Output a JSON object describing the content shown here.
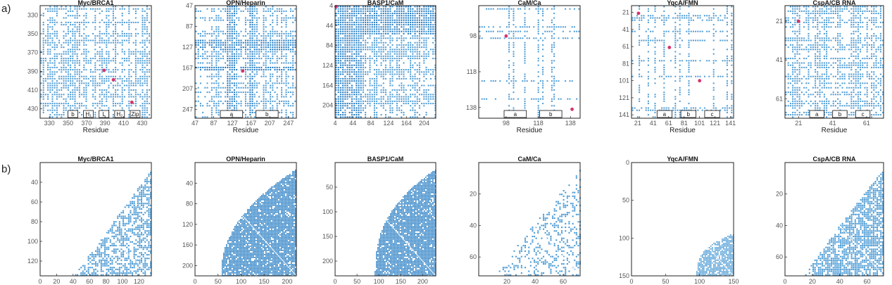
{
  "figure": {
    "row_labels": [
      "a)",
      "b)"
    ],
    "colors": {
      "dot": "#4c9bd4",
      "dense": "#1f78c1",
      "marker": "#d6336c",
      "axis": "#222222",
      "tick": "#555555"
    }
  },
  "chart_data": [
    {
      "type": "heatmap",
      "title": "Myc/BRCA1",
      "xlabel": "Residue",
      "ylabel": "",
      "ticks": [
        330,
        350,
        370,
        390,
        410,
        430
      ],
      "x_tick_labels": [
        "330",
        "350",
        "370",
        "390",
        "410",
        "430"
      ],
      "y_tick_labels": [
        "330",
        "350",
        "370",
        "390",
        "410",
        "430"
      ],
      "range": [
        320,
        440
      ],
      "density": 0.55,
      "dense_bands": [],
      "highlight_points": [
        [
          389,
          389
        ],
        [
          399,
          399
        ],
        [
          419,
          423
        ]
      ],
      "region_labels": [
        "b",
        "H₁",
        "L",
        "H₂",
        "Zip"
      ]
    },
    {
      "type": "heatmap",
      "title": "OPN/Heparin",
      "xlabel": "Residue",
      "ylabel": "",
      "ticks": [
        47,
        87,
        127,
        167,
        207,
        247
      ],
      "x_tick_labels": [
        "47",
        "87",
        "127",
        "167",
        "207",
        "247"
      ],
      "y_tick_labels": [
        "47",
        "87",
        "127",
        "167",
        "207",
        "247"
      ],
      "range": [
        47,
        264
      ],
      "density": 0.55,
      "dense_bands": [
        [
          112,
          130
        ],
        [
          160,
          172
        ]
      ],
      "highlight_points": [
        [
          149,
          173
        ]
      ],
      "region_labels": [
        "a",
        "b"
      ]
    },
    {
      "type": "heatmap",
      "title": "BASP1/CaM",
      "xlabel": "",
      "ylabel": "",
      "ticks": [
        4,
        44,
        84,
        124,
        164,
        204
      ],
      "x_tick_labels": [
        "4",
        "44",
        "84",
        "124",
        "164",
        "204"
      ],
      "y_tick_labels": [
        "4",
        "44",
        "84",
        "124",
        "164",
        "204"
      ],
      "range": [
        4,
        230
      ],
      "density": 0.6,
      "dense_bands": [
        [
          4,
          60
        ]
      ],
      "highlight_points": [
        [
          6,
          6
        ]
      ],
      "region_labels": []
    },
    {
      "type": "heatmap",
      "title": "CaM/Ca",
      "xlabel": "Residue",
      "ylabel": "",
      "ticks": [
        98,
        118,
        138
      ],
      "x_tick_labels": [
        "98",
        "118",
        "138"
      ],
      "y_tick_labels": [
        "98",
        "118",
        "138"
      ],
      "range": [
        81,
        144
      ],
      "density": 0.12,
      "dense_bands": [],
      "highlight_points": [
        [
          98,
          98
        ],
        [
          139,
          139
        ]
      ],
      "region_labels": [
        "a",
        "b"
      ]
    },
    {
      "type": "heatmap",
      "title": "YqcA/FMN",
      "xlabel": "Residue",
      "ylabel": "",
      "ticks": [
        21,
        41,
        61,
        81,
        101,
        121,
        141
      ],
      "x_tick_labels": [
        "21",
        "41",
        "61",
        "81",
        "101",
        "121",
        "141"
      ],
      "y_tick_labels": [
        "21",
        "41",
        "61",
        "81",
        "101",
        "121",
        "141"
      ],
      "range": [
        13,
        145
      ],
      "density": 0.2,
      "dense_bands": [],
      "highlight_points": [
        [
          22,
          22
        ],
        [
          62,
          62
        ],
        [
          101,
          101
        ]
      ],
      "region_labels": [
        "a",
        "b",
        "c"
      ]
    },
    {
      "type": "heatmap",
      "title": "CspA/CB RNA",
      "xlabel": "Residue",
      "ylabel": "",
      "ticks": [
        21,
        41,
        61
      ],
      "x_tick_labels": [
        "21",
        "41",
        "61"
      ],
      "y_tick_labels": [
        "21",
        "41",
        "61"
      ],
      "range": [
        13,
        71
      ],
      "density": 0.45,
      "dense_bands": [],
      "highlight_points": [
        [
          21,
          21
        ]
      ],
      "region_labels": [
        "a",
        "b",
        "c"
      ]
    },
    {
      "type": "heatmap",
      "title": "Myc/BRCA1",
      "xlabel": "",
      "ylabel": "",
      "x_ticks": [
        0,
        20,
        40,
        60,
        80,
        100,
        120
      ],
      "x_tick_labels": [
        "0",
        "20",
        "40",
        "60",
        "80",
        "100",
        "120"
      ],
      "y_ticks": [
        40,
        60,
        80,
        100,
        120
      ],
      "y_tick_labels": [
        "40",
        "60",
        "80",
        "100",
        "120"
      ],
      "xlim": [
        0,
        135
      ],
      "ylim": [
        20,
        135
      ],
      "fill": "sparse",
      "start": 40,
      "end": 135,
      "steep": 1.0
    },
    {
      "type": "heatmap",
      "title": "OPN/Heparin",
      "xlabel": "",
      "ylabel": "",
      "x_ticks": [
        0,
        50,
        100,
        150,
        200
      ],
      "x_tick_labels": [
        "0",
        "50",
        "100",
        "150",
        "200"
      ],
      "y_ticks": [
        40,
        80,
        120,
        160,
        200
      ],
      "y_tick_labels": [
        "40",
        "80",
        "120",
        "160",
        "200"
      ],
      "xlim": [
        0,
        220
      ],
      "ylim": [
        0,
        220
      ],
      "fill": "dense",
      "start": 55,
      "end": 220,
      "steep": 2.2
    },
    {
      "type": "heatmap",
      "title": "BASP1/CaM",
      "xlabel": "",
      "ylabel": "",
      "x_ticks": [
        0,
        50,
        100,
        150,
        200
      ],
      "x_tick_labels": [
        "0",
        "50",
        "100",
        "150",
        "200"
      ],
      "y_ticks": [
        50,
        100,
        150,
        200
      ],
      "y_tick_labels": [
        "50",
        "100",
        "150",
        "200"
      ],
      "xlim": [
        0,
        230
      ],
      "ylim": [
        0,
        230
      ],
      "fill": "dense",
      "start": 90,
      "end": 230,
      "steep": 2.6
    },
    {
      "type": "heatmap",
      "title": "CaM/Ca",
      "xlabel": "",
      "ylabel": "",
      "x_ticks": [
        20,
        40,
        60
      ],
      "x_tick_labels": [
        "20",
        "40",
        "60"
      ],
      "y_ticks": [
        20,
        40,
        60
      ],
      "y_tick_labels": [
        "20",
        "40",
        "60"
      ],
      "xlim": [
        0,
        72
      ],
      "ylim": [
        0,
        72
      ],
      "fill": "very-sparse",
      "start": 12,
      "end": 72,
      "steep": 1.1
    },
    {
      "type": "heatmap",
      "title": "YqcA/FMN",
      "xlabel": "",
      "ylabel": "",
      "x_ticks": [
        0,
        50,
        100,
        150
      ],
      "x_tick_labels": [
        "0",
        "50",
        "100",
        "150"
      ],
      "y_ticks": [
        0,
        50,
        100,
        150
      ],
      "y_tick_labels": [
        "0",
        "50",
        "100",
        "150"
      ],
      "xlim": [
        0,
        150
      ],
      "ylim": [
        0,
        150
      ],
      "fill": "wedge",
      "start": 95,
      "end": 150,
      "steep": 3.0
    },
    {
      "type": "heatmap",
      "title": "CspA/CB RNA",
      "xlabel": "",
      "ylabel": "",
      "x_ticks": [
        0,
        20,
        40,
        60
      ],
      "x_tick_labels": [
        "0",
        "20",
        "40",
        "60"
      ],
      "y_ticks": [
        20,
        40,
        60
      ],
      "y_tick_labels": [
        "20",
        "40",
        "60"
      ],
      "xlim": [
        0,
        72
      ],
      "ylim": [
        0,
        72
      ],
      "fill": "medium",
      "start": 14,
      "end": 72,
      "steep": 1.1
    }
  ]
}
